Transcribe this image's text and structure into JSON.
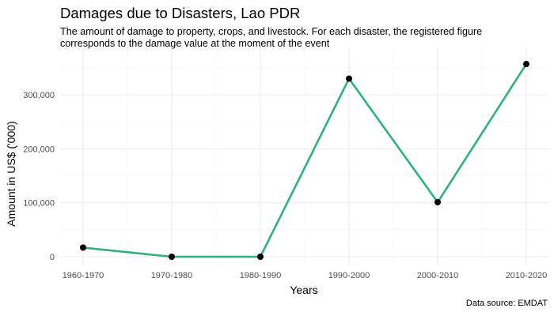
{
  "chart_data": {
    "type": "line",
    "title": "Damages due to Disasters, Lao PDR",
    "subtitle": "The amount of damage to property, crops, and livestock. For each disaster, the registered figure corresponds to the damage value at the moment of the event",
    "caption": "Data source: EMDAT",
    "xlabel": "Years",
    "ylabel": "Amount in US$ ('000)",
    "categories": [
      "1960-1970",
      "1970-1980",
      "1980-1990",
      "1990-2000",
      "2000-2010",
      "2010-2020"
    ],
    "values": [
      17000,
      0,
      0,
      330000,
      101000,
      357000
    ],
    "ylim": [
      0,
      375000
    ],
    "yticks": [
      0,
      100000,
      200000,
      300000
    ],
    "ytick_labels": [
      "0",
      "100,000",
      "200,000",
      "300,000"
    ],
    "line_color": "#2db37a",
    "point_color": "#000000",
    "grid": true,
    "legend": "none"
  }
}
